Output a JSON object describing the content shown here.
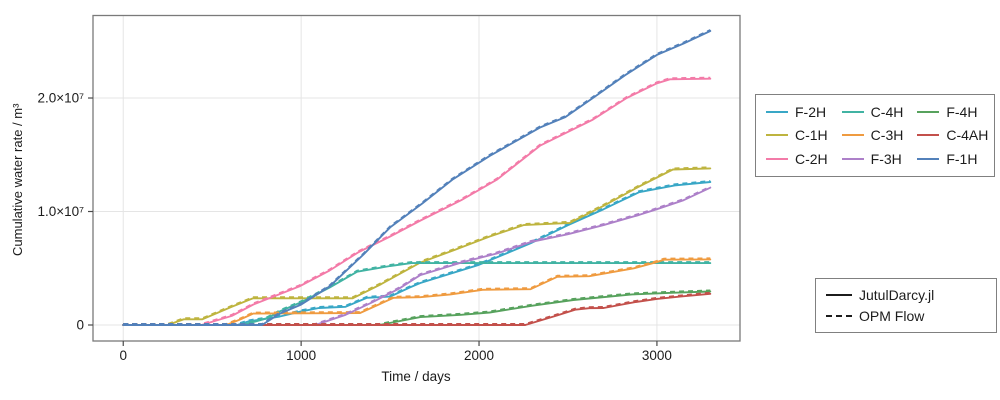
{
  "figure": {
    "background": "#ffffff",
    "frame_color": "#7a7a7a",
    "grid_color": "#e5e5e5",
    "tick_color": "#4a4a4a",
    "text_color": "#1c1c1c"
  },
  "chart_data": {
    "type": "line",
    "title": "",
    "xlabel": "Time / days",
    "ylabel": "Cumulative water rate / m³",
    "xlim": [
      -170,
      3467
    ],
    "ylim": [
      -1410000,
      27270000
    ],
    "grid": true,
    "legend_position": "right-outside",
    "xticks": [
      {
        "value": 0,
        "label": "0"
      },
      {
        "value": 1000,
        "label": "1000"
      },
      {
        "value": 2000,
        "label": "2000"
      },
      {
        "value": 3000,
        "label": "3000"
      }
    ],
    "yticks": [
      {
        "value": 0,
        "label": "0"
      },
      {
        "value": 10000000,
        "label": "1.0×10⁷"
      },
      {
        "value": 20000000,
        "label": "2.0×10⁷"
      }
    ],
    "line_styles": [
      {
        "name": "JutulDarcy.jl",
        "style": "solid"
      },
      {
        "name": "OPM Flow",
        "style": "dashed"
      }
    ],
    "series": [
      {
        "name": "F-2H",
        "color": "#39a7c6",
        "points": [
          [
            0,
            0
          ],
          [
            640,
            0
          ],
          [
            700,
            300000
          ],
          [
            880,
            750000
          ],
          [
            1000,
            1200000
          ],
          [
            1100,
            1500000
          ],
          [
            1250,
            1600000
          ],
          [
            1370,
            2400000
          ],
          [
            1500,
            2500000
          ],
          [
            1610,
            3300000
          ],
          [
            1670,
            3700000
          ],
          [
            2000,
            5300000
          ],
          [
            2290,
            7200000
          ],
          [
            2500,
            8800000
          ],
          [
            2700,
            10200000
          ],
          [
            2900,
            11700000
          ],
          [
            3100,
            12300000
          ],
          [
            3300,
            12600000
          ]
        ]
      },
      {
        "name": "C-1H",
        "color": "#beb43f",
        "points": [
          [
            0,
            0
          ],
          [
            250,
            0
          ],
          [
            340,
            500000
          ],
          [
            445,
            500000
          ],
          [
            610,
            1600000
          ],
          [
            730,
            2350000
          ],
          [
            1290,
            2350000
          ],
          [
            1450,
            3600000
          ],
          [
            1670,
            5500000
          ],
          [
            1860,
            6600000
          ],
          [
            2060,
            7800000
          ],
          [
            2250,
            8800000
          ],
          [
            2510,
            9000000
          ],
          [
            2700,
            10500000
          ],
          [
            2900,
            12200000
          ],
          [
            3090,
            13700000
          ],
          [
            3300,
            13800000
          ]
        ]
      },
      {
        "name": "C-2H",
        "color": "#f37ba8",
        "points": [
          [
            0,
            0
          ],
          [
            440,
            0
          ],
          [
            610,
            800000
          ],
          [
            730,
            1800000
          ],
          [
            990,
            3400000
          ],
          [
            1160,
            4800000
          ],
          [
            1320,
            6400000
          ],
          [
            1500,
            7800000
          ],
          [
            1670,
            9200000
          ],
          [
            1900,
            11000000
          ],
          [
            2100,
            12800000
          ],
          [
            2343,
            15800000
          ],
          [
            2640,
            18100000
          ],
          [
            2830,
            20000000
          ],
          [
            3000,
            21300000
          ],
          [
            3073,
            21650000
          ],
          [
            3300,
            21700000
          ]
        ]
      },
      {
        "name": "C-4H",
        "color": "#41b3a3",
        "points": [
          [
            0,
            0
          ],
          [
            670,
            0
          ],
          [
            810,
            600000
          ],
          [
            880,
            1200000
          ],
          [
            1000,
            2000000
          ],
          [
            1160,
            3300000
          ],
          [
            1315,
            4700000
          ],
          [
            1500,
            5200000
          ],
          [
            1620,
            5450000
          ],
          [
            3300,
            5450000
          ]
        ]
      },
      {
        "name": "C-3H",
        "color": "#ef9b40",
        "points": [
          [
            0,
            0
          ],
          [
            580,
            0
          ],
          [
            660,
            500000
          ],
          [
            730,
            1000000
          ],
          [
            1330,
            1050000
          ],
          [
            1520,
            2400000
          ],
          [
            1670,
            2450000
          ],
          [
            1840,
            2700000
          ],
          [
            2020,
            3100000
          ],
          [
            2290,
            3150000
          ],
          [
            2440,
            4250000
          ],
          [
            2620,
            4300000
          ],
          [
            2870,
            5000000
          ],
          [
            2990,
            5500000
          ],
          [
            3040,
            5750000
          ],
          [
            3300,
            5780000
          ]
        ]
      },
      {
        "name": "F-3H",
        "color": "#ad80c9",
        "points": [
          [
            0,
            0
          ],
          [
            1080,
            0
          ],
          [
            1250,
            900000
          ],
          [
            1400,
            2000000
          ],
          [
            1550,
            3200000
          ],
          [
            1670,
            4400000
          ],
          [
            1900,
            5500000
          ],
          [
            2100,
            6300000
          ],
          [
            2290,
            7300000
          ],
          [
            2500,
            8000000
          ],
          [
            2700,
            8800000
          ],
          [
            2900,
            9700000
          ],
          [
            3000,
            10200000
          ],
          [
            3150,
            11000000
          ],
          [
            3300,
            12100000
          ]
        ]
      },
      {
        "name": "F-4H",
        "color": "#57a25d",
        "points": [
          [
            0,
            0
          ],
          [
            1440,
            0
          ],
          [
            1670,
            700000
          ],
          [
            1900,
            900000
          ],
          [
            2060,
            1100000
          ],
          [
            2300,
            1700000
          ],
          [
            2530,
            2200000
          ],
          [
            2860,
            2700000
          ],
          [
            3100,
            2850000
          ],
          [
            3300,
            2950000
          ]
        ]
      },
      {
        "name": "C-4AH",
        "color": "#c3504b",
        "points": [
          [
            0,
            0
          ],
          [
            2260,
            0
          ],
          [
            2440,
            850000
          ],
          [
            2540,
            1350000
          ],
          [
            2620,
            1480000
          ],
          [
            2700,
            1500000
          ],
          [
            2870,
            2000000
          ],
          [
            3000,
            2300000
          ],
          [
            3130,
            2500000
          ],
          [
            3300,
            2750000
          ]
        ]
      },
      {
        "name": "F-1H",
        "color": "#5381ba",
        "points": [
          [
            0,
            0
          ],
          [
            780,
            0
          ],
          [
            880,
            1000000
          ],
          [
            1000,
            1800000
          ],
          [
            1160,
            3400000
          ],
          [
            1350,
            6200000
          ],
          [
            1500,
            8600000
          ],
          [
            1680,
            10700000
          ],
          [
            1850,
            12800000
          ],
          [
            2060,
            14900000
          ],
          [
            2343,
            17400000
          ],
          [
            2483,
            18300000
          ],
          [
            2640,
            20000000
          ],
          [
            2820,
            22000000
          ],
          [
            3000,
            23800000
          ],
          [
            3150,
            24800000
          ],
          [
            3300,
            25900000
          ]
        ]
      }
    ]
  },
  "legend_sim": {
    "jutul_label": "JutulDarcy.jl",
    "opm_label": "OPM Flow"
  }
}
